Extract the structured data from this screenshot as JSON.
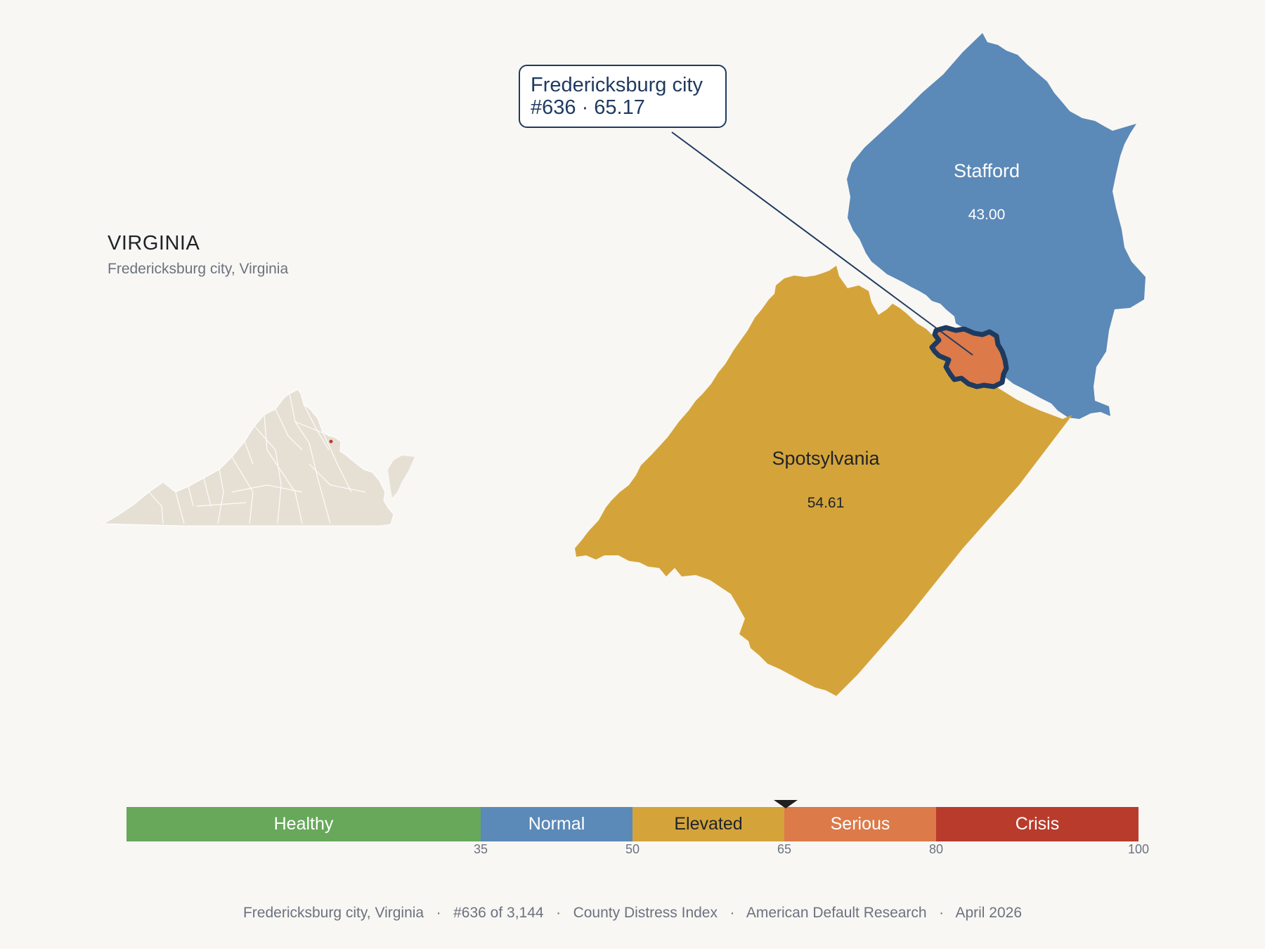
{
  "header": {
    "state": "VIRGINIA",
    "subtitle": "Fredericksburg city, Virginia"
  },
  "map": {
    "regions": [
      {
        "name": "Stafford",
        "value": "43.00",
        "category": "Normal",
        "color": "#5b89b8"
      },
      {
        "name": "Spotsylvania",
        "value": "54.61",
        "category": "Elevated",
        "color": "#d4a43a"
      },
      {
        "name": "Fredericksburg city",
        "category": "Serious",
        "color": "#dc7a4a",
        "highlight": true
      }
    ],
    "inset_color": "#e6e0d4",
    "inset_highlight_color": "#c0392b"
  },
  "callout": {
    "line1": "Fredericksburg city",
    "line2": "#636 · 65.17"
  },
  "scale": {
    "segments": [
      {
        "label": "Healthy",
        "color": "#67a85b",
        "text_color": "#ffffff"
      },
      {
        "label": "Normal",
        "color": "#5b89b8",
        "text_color": "#ffffff"
      },
      {
        "label": "Elevated",
        "color": "#d4a43a",
        "text_color": "#1f2328"
      },
      {
        "label": "Serious",
        "color": "#dc7a4a",
        "text_color": "#ffffff"
      },
      {
        "label": "Crisis",
        "color": "#b93b2c",
        "text_color": "#ffffff"
      }
    ],
    "ticks": [
      "35",
      "50",
      "65",
      "80",
      "100"
    ],
    "marker_value": 65.17
  },
  "footer": {
    "text": "Fredericksburg city, Virginia   ·   #636 of 3,144   ·   County Distress Index   ·   American Default Research   ·   April 2026"
  }
}
